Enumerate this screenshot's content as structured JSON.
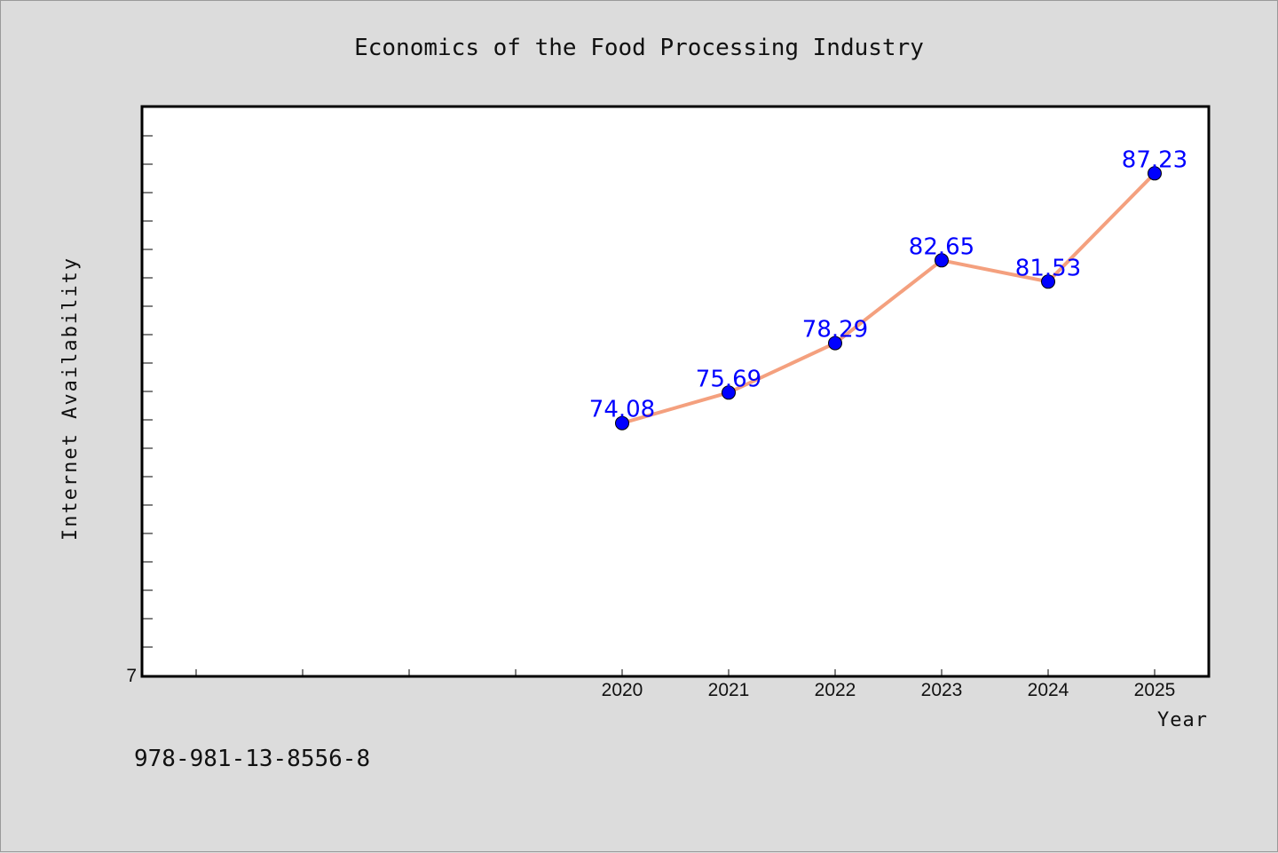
{
  "chart_data": {
    "type": "line",
    "title": "Economics of the Food Processing Industry",
    "xlabel": "Year",
    "ylabel": "Internet Availability",
    "categories": [
      "2020",
      "2021",
      "2022",
      "2023",
      "2024",
      "2025"
    ],
    "series": [
      {
        "values": [
          74.08,
          75.69,
          78.29,
          82.65,
          81.53,
          87.23
        ]
      }
    ],
    "data_labels": [
      "74.08",
      "75.69",
      "78.29",
      "82.65",
      "81.53",
      "87.23"
    ],
    "y_tick_label_visible": "7",
    "ylim": [
      60.8,
      90.7
    ],
    "line_color": "#f4a07e",
    "marker_color": "#0000ff",
    "label_color": "#0000ff",
    "grid": false,
    "legend": "none"
  },
  "footer_text": "978-981-13-8556-8"
}
